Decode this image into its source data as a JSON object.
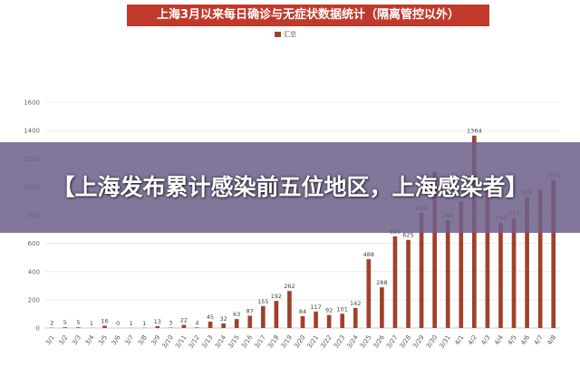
{
  "colors": {
    "bar": "#a0412b",
    "title_bg": "#c0392b",
    "banner": "#6e608a"
  },
  "chart_data": {
    "type": "bar",
    "title": "上海3月以来每日确诊与无症状数据统计（隔离管控以外）",
    "legend": [
      {
        "label": "汇总",
        "placement": "top-center"
      }
    ],
    "xlabel": "",
    "ylabel": "",
    "ylim": [
      0,
      1600
    ],
    "yticks": [
      0,
      200,
      400,
      600,
      800,
      1000,
      1200,
      1400,
      1600
    ],
    "grid": true,
    "categories": [
      "3/1",
      "3/2",
      "3/3",
      "3/4",
      "3/5",
      "3/6",
      "3/7",
      "3/8",
      "3/9",
      "3/10",
      "3/11",
      "3/12",
      "3/13",
      "3/14",
      "3/15",
      "3/16",
      "3/17",
      "3/18",
      "3/19",
      "3/20",
      "3/21",
      "3/22",
      "3/23",
      "3/24",
      "3/25",
      "3/26",
      "3/27",
      "3/28",
      "3/29",
      "3/30",
      "3/31",
      "4/1",
      "4/2",
      "4/3",
      "4/4",
      "4/5",
      "4/6",
      "4/7",
      "4/8"
    ],
    "series": [
      {
        "name": "汇总",
        "values": [
          2,
          5,
          5,
          1,
          16,
          0,
          1,
          1,
          13,
          3,
          22,
          4,
          45,
          32,
          63,
          87,
          155,
          192,
          262,
          84,
          117,
          92,
          101,
          142,
          488,
          288,
          650,
          625,
          816,
          1106,
          764,
          899,
          1364,
          1000,
          744,
          777,
          928,
          980,
          1050
        ],
        "labels": [
          "2",
          "5",
          "5",
          "1",
          "16",
          "0",
          "1",
          "1",
          "13",
          "3",
          "22",
          "4",
          "45",
          "32",
          "63",
          "87",
          "155",
          "192",
          "262",
          "84",
          "117",
          "92",
          "101",
          "142",
          "488",
          "288",
          "650",
          "625",
          "816",
          "",
          "764",
          "899",
          "1364",
          "",
          "744",
          "777",
          "928",
          "",
          "1050"
        ]
      }
    ]
  },
  "banner": {
    "text": "【上海发布累计感染前五位地区，上海感染者】"
  }
}
